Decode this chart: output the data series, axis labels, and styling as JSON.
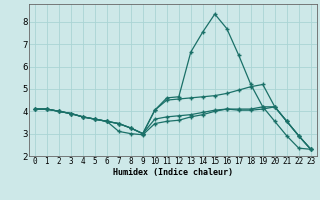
{
  "xlabel": "Humidex (Indice chaleur)",
  "background_color": "#cde8e8",
  "grid_color": "#aad4d4",
  "line_color": "#1a7068",
  "hours": [
    0,
    1,
    2,
    3,
    4,
    5,
    6,
    7,
    8,
    9,
    10,
    11,
    12,
    13,
    14,
    15,
    16,
    17,
    18,
    19,
    20,
    21,
    22,
    23
  ],
  "line1": [
    4.1,
    4.1,
    4.0,
    3.9,
    3.75,
    3.65,
    3.55,
    3.45,
    3.25,
    3.0,
    4.05,
    4.6,
    4.65,
    6.65,
    7.55,
    8.35,
    7.7,
    6.5,
    5.2,
    4.2,
    3.55,
    2.9,
    2.35,
    2.3
  ],
  "line2": [
    4.1,
    4.1,
    4.0,
    3.9,
    3.75,
    3.65,
    3.55,
    3.45,
    3.25,
    3.0,
    4.05,
    4.5,
    4.55,
    4.6,
    4.65,
    4.7,
    4.8,
    4.95,
    5.1,
    5.2,
    4.2,
    3.55,
    2.9,
    2.3
  ],
  "line3": [
    4.1,
    4.1,
    4.0,
    3.9,
    3.75,
    3.65,
    3.55,
    3.45,
    3.25,
    3.0,
    3.65,
    3.75,
    3.8,
    3.85,
    3.95,
    4.05,
    4.1,
    4.1,
    4.1,
    4.2,
    4.2,
    3.55,
    2.9,
    2.3
  ],
  "line4": [
    4.1,
    4.1,
    4.0,
    3.9,
    3.75,
    3.65,
    3.55,
    3.1,
    3.0,
    2.95,
    3.45,
    3.55,
    3.6,
    3.75,
    3.85,
    4.0,
    4.1,
    4.05,
    4.05,
    4.1,
    4.2,
    3.55,
    2.9,
    2.3
  ],
  "ylim": [
    2.0,
    8.8
  ],
  "yticks": [
    2,
    3,
    4,
    5,
    6,
    7,
    8
  ],
  "xlim": [
    -0.5,
    23.5
  ],
  "xlabel_fontsize": 6.0,
  "tick_fontsize": 5.5,
  "ytick_fontsize": 6.5
}
